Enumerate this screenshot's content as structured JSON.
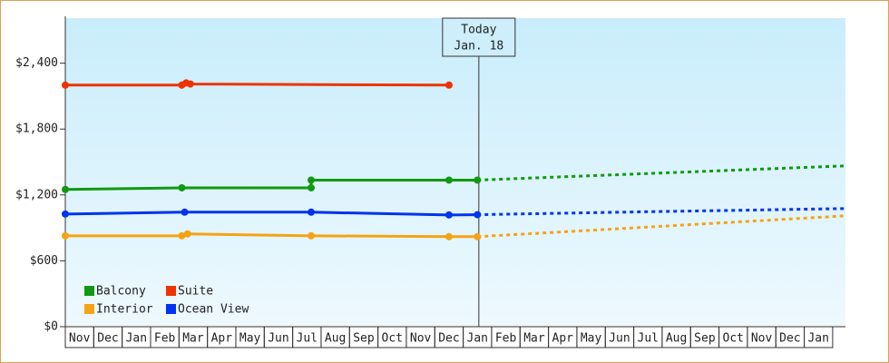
{
  "chart_data": {
    "type": "line",
    "xlim": [
      0,
      27.45
    ],
    "xticks": [
      {
        "value": 0.5,
        "label": "Nov"
      },
      {
        "value": 1.5,
        "label": "Dec"
      },
      {
        "value": 2.5,
        "label": "Jan"
      },
      {
        "value": 3.5,
        "label": "Feb"
      },
      {
        "value": 4.5,
        "label": "Mar"
      },
      {
        "value": 5.5,
        "label": "Apr"
      },
      {
        "value": 6.5,
        "label": "May"
      },
      {
        "value": 7.5,
        "label": "Jun"
      },
      {
        "value": 8.5,
        "label": "Jul"
      },
      {
        "value": 9.5,
        "label": "Aug"
      },
      {
        "value": 10.5,
        "label": "Sep"
      },
      {
        "value": 11.5,
        "label": "Oct"
      },
      {
        "value": 12.5,
        "label": "Nov"
      },
      {
        "value": 13.5,
        "label": "Dec"
      },
      {
        "value": 14.5,
        "label": "Jan"
      },
      {
        "value": 15.5,
        "label": "Feb"
      },
      {
        "value": 16.5,
        "label": "Mar"
      },
      {
        "value": 17.5,
        "label": "Apr"
      },
      {
        "value": 18.5,
        "label": "May"
      },
      {
        "value": 19.5,
        "label": "Jun"
      },
      {
        "value": 20.5,
        "label": "Jul"
      },
      {
        "value": 21.5,
        "label": "Aug"
      },
      {
        "value": 22.5,
        "label": "Sep"
      },
      {
        "value": 23.5,
        "label": "Oct"
      },
      {
        "value": 24.5,
        "label": "Nov"
      },
      {
        "value": 25.5,
        "label": "Dec"
      },
      {
        "value": 26.5,
        "label": "Jan"
      }
    ],
    "ylim": [
      0,
      2810
    ],
    "yticks": [
      {
        "value": 0,
        "label": "$0"
      },
      {
        "value": 600,
        "label": "$600"
      },
      {
        "value": 1200,
        "label": "$1,200"
      },
      {
        "value": 1800,
        "label": "$1,800"
      },
      {
        "value": 2400,
        "label": "$2,400"
      }
    ],
    "today": {
      "x": 14.55,
      "label": "Today",
      "date": "Jan. 18"
    },
    "series": [
      {
        "name": "Balcony",
        "color": "#119911",
        "x": [
          0,
          4.1,
          8.65,
          8.65,
          13.5,
          14.5
        ],
        "values": [
          1250,
          1265,
          1265,
          1335,
          1335,
          1335
        ],
        "forecast": {
          "x": [
            14.5,
            20,
            27.45
          ],
          "values": [
            1335,
            1390,
            1465
          ]
        }
      },
      {
        "name": "Suite",
        "color": "#ee3300",
        "x": [
          0,
          4.1,
          4.25,
          4.4,
          13.5
        ],
        "values": [
          2200,
          2200,
          2220,
          2210,
          2200
        ]
      },
      {
        "name": "Interior",
        "color": "#f5a315",
        "x": [
          0,
          4.1,
          4.3,
          8.65,
          13.5,
          14.5
        ],
        "values": [
          828,
          828,
          845,
          828,
          820,
          820
        ],
        "forecast": {
          "x": [
            14.5,
            20,
            27.45
          ],
          "values": [
            820,
            900,
            1010
          ]
        }
      },
      {
        "name": "Ocean View",
        "color": "#0033ee",
        "x": [
          0,
          4.2,
          8.65,
          13.5,
          14.5
        ],
        "values": [
          1026,
          1043,
          1043,
          1018,
          1020
        ],
        "forecast": {
          "x": [
            14.5,
            20,
            27.45
          ],
          "values": [
            1020,
            1045,
            1076
          ]
        }
      }
    ]
  }
}
